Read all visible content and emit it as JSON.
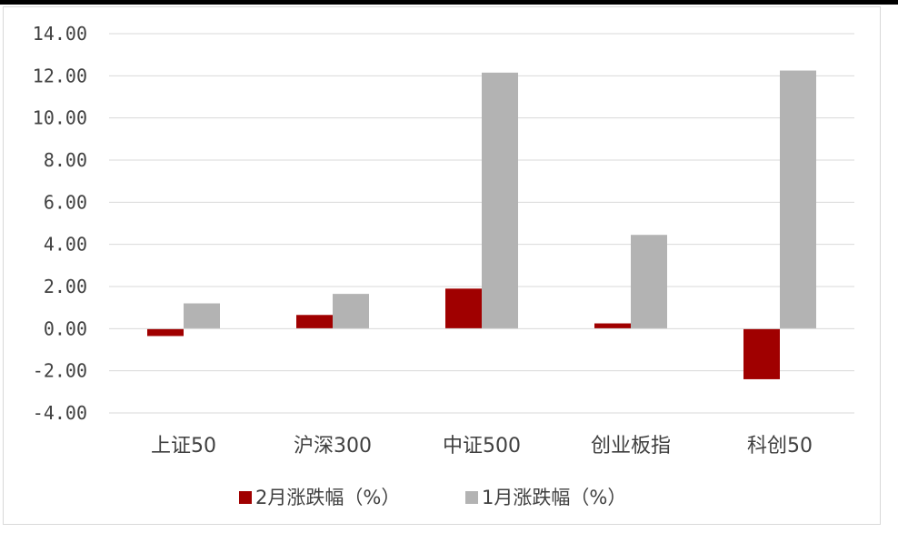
{
  "chart_data": {
    "type": "bar",
    "categories": [
      "上证50",
      "沪深300",
      "中证500",
      "创业板指",
      "科创50"
    ],
    "series": [
      {
        "name": "2月涨跌幅（%）",
        "color": "#a00000",
        "values": [
          -0.35,
          0.65,
          1.9,
          0.25,
          -2.4
        ]
      },
      {
        "name": "1月涨跌幅（%）",
        "color": "#b3b3b3",
        "values": [
          1.2,
          1.65,
          12.15,
          4.45,
          12.25
        ]
      }
    ],
    "y_ticks": [
      "-4.00",
      "-2.00",
      "0.00",
      "2.00",
      "4.00",
      "6.00",
      "8.00",
      "10.00",
      "12.00",
      "14.00"
    ],
    "ylim": [
      -4,
      14
    ],
    "grid": true,
    "legend_position": "bottom",
    "title": "",
    "xlabel": "",
    "ylabel": ""
  }
}
